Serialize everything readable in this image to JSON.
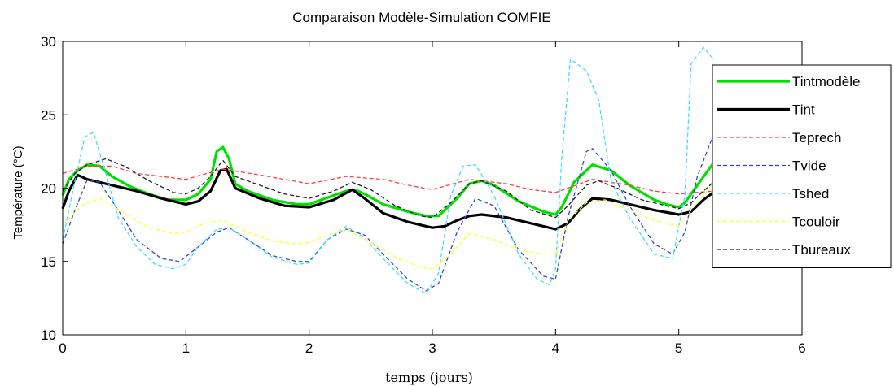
{
  "chart_data": {
    "type": "line",
    "title": "Comparaison Modèle-Simulation COMFIE",
    "xlabel": "temps (jours)",
    "ylabel": "Température (°C)",
    "xlim": [
      0,
      6
    ],
    "ylim": [
      10,
      30
    ],
    "xticks": [
      "0",
      "1",
      "2",
      "3",
      "4",
      "5",
      "6"
    ],
    "yticks": [
      "10",
      "15",
      "20",
      "25",
      "30"
    ],
    "grid": false,
    "legend_position": "top-right",
    "series": [
      {
        "name": "Tintmodèle",
        "color": "#00e000",
        "style": "solid",
        "width": 3.2,
        "x": [
          0,
          0.05,
          0.12,
          0.2,
          0.3,
          0.4,
          0.55,
          0.7,
          0.85,
          1.0,
          1.1,
          1.2,
          1.25,
          1.3,
          1.35,
          1.4,
          1.5,
          1.7,
          1.9,
          2.0,
          2.1,
          2.2,
          2.3,
          2.37,
          2.45,
          2.6,
          2.8,
          2.95,
          3.05,
          3.2,
          3.3,
          3.4,
          3.5,
          3.7,
          3.9,
          4.0,
          4.05,
          4.15,
          4.3,
          4.45,
          4.6,
          4.8,
          4.9,
          5.0,
          5.05,
          5.15,
          5.28
        ],
        "y": [
          19.5,
          20.6,
          21.2,
          21.6,
          21.5,
          20.8,
          20.1,
          19.6,
          19.2,
          19.2,
          19.6,
          20.6,
          22.5,
          22.8,
          22.0,
          20.3,
          19.8,
          19.2,
          18.9,
          18.9,
          19.2,
          19.5,
          19.8,
          19.9,
          19.6,
          18.9,
          18.4,
          18.1,
          18.1,
          19.3,
          20.3,
          20.5,
          20.2,
          19.1,
          18.4,
          18.2,
          18.7,
          20.4,
          21.6,
          21.2,
          20.2,
          19.2,
          18.9,
          18.7,
          19.0,
          20.2,
          21.7
        ]
      },
      {
        "name": "Tint",
        "color": "#000000",
        "style": "solid",
        "width": 3.2,
        "x": [
          0,
          0.05,
          0.12,
          0.2,
          0.4,
          0.6,
          0.8,
          1.0,
          1.1,
          1.2,
          1.28,
          1.33,
          1.4,
          1.6,
          1.8,
          2.0,
          2.2,
          2.35,
          2.45,
          2.6,
          2.8,
          3.0,
          3.1,
          3.2,
          3.3,
          3.4,
          3.6,
          3.8,
          4.0,
          4.1,
          4.2,
          4.3,
          4.45,
          4.6,
          4.8,
          5.0,
          5.1,
          5.2,
          5.28
        ],
        "y": [
          18.6,
          19.8,
          20.9,
          20.6,
          20.2,
          19.8,
          19.3,
          18.9,
          19.1,
          19.8,
          21.2,
          21.3,
          20.0,
          19.3,
          18.8,
          18.7,
          19.2,
          19.9,
          19.3,
          18.3,
          17.7,
          17.3,
          17.4,
          17.8,
          18.1,
          18.2,
          18.0,
          17.6,
          17.2,
          17.6,
          18.6,
          19.3,
          19.2,
          18.9,
          18.5,
          18.2,
          18.4,
          19.2,
          19.7
        ]
      },
      {
        "name": "Teprech",
        "color": "#ff4040",
        "style": "dash",
        "width": 1.3,
        "x": [
          0,
          0.2,
          0.4,
          0.6,
          0.8,
          1.0,
          1.3,
          1.6,
          1.8,
          2.0,
          2.3,
          2.6,
          2.8,
          3.0,
          3.3,
          3.6,
          3.8,
          4.0,
          4.3,
          4.6,
          4.8,
          5.0,
          5.28
        ],
        "y": [
          21.0,
          21.5,
          21.5,
          21.0,
          20.8,
          20.6,
          21.3,
          20.9,
          20.6,
          20.3,
          20.8,
          20.6,
          20.2,
          19.9,
          20.6,
          20.3,
          19.9,
          19.7,
          20.6,
          20.2,
          19.8,
          19.6,
          19.8
        ]
      },
      {
        "name": "Tvide",
        "color": "#3344dd",
        "style": "dash",
        "width": 1.3,
        "x": [
          0,
          0.1,
          0.2,
          0.3,
          0.45,
          0.6,
          0.8,
          0.95,
          1.1,
          1.25,
          1.35,
          1.5,
          1.7,
          1.9,
          2.0,
          2.15,
          2.3,
          2.45,
          2.6,
          2.8,
          2.95,
          3.05,
          3.2,
          3.35,
          3.5,
          3.7,
          3.9,
          4.0,
          4.1,
          4.25,
          4.3,
          4.45,
          4.6,
          4.8,
          4.95,
          5.05,
          5.15,
          5.28
        ],
        "y": [
          16.2,
          18.5,
          20.6,
          20.4,
          18.5,
          16.5,
          15.2,
          15.0,
          16.0,
          17.0,
          17.3,
          16.5,
          15.4,
          15.0,
          15.0,
          16.5,
          17.2,
          16.8,
          15.5,
          13.8,
          13.0,
          13.5,
          17.0,
          19.3,
          18.8,
          15.8,
          14.0,
          13.8,
          18.0,
          22.5,
          22.7,
          21.2,
          18.8,
          16.2,
          15.5,
          17.0,
          20.8,
          23.6
        ]
      },
      {
        "name": "Tshed",
        "color": "#44ddff",
        "style": "dash",
        "width": 1.3,
        "x": [
          0,
          0.1,
          0.18,
          0.25,
          0.35,
          0.45,
          0.6,
          0.75,
          0.9,
          1.0,
          1.1,
          1.25,
          1.35,
          1.5,
          1.7,
          1.9,
          2.0,
          2.15,
          2.3,
          2.45,
          2.6,
          2.8,
          2.95,
          3.05,
          3.15,
          3.25,
          3.35,
          3.5,
          3.7,
          3.85,
          3.95,
          4.0,
          4.05,
          4.12,
          4.25,
          4.35,
          4.45,
          4.6,
          4.8,
          4.95,
          5.05,
          5.1,
          5.2,
          5.28
        ],
        "y": [
          16.5,
          20.5,
          23.5,
          23.8,
          21.0,
          18.0,
          16.0,
          14.8,
          14.5,
          14.8,
          16.0,
          17.2,
          17.3,
          16.5,
          15.3,
          14.8,
          14.9,
          16.5,
          17.4,
          16.6,
          15.2,
          13.5,
          12.8,
          14.2,
          19.5,
          21.5,
          21.6,
          19.5,
          15.5,
          13.8,
          13.4,
          14.5,
          22.0,
          28.8,
          28.0,
          26.0,
          20.5,
          18.0,
          15.5,
          15.2,
          19.5,
          28.5,
          29.6,
          28.8
        ]
      },
      {
        "name": "Tcouloir",
        "color": "#ffff33",
        "style": "dash",
        "width": 1.3,
        "x": [
          0,
          0.15,
          0.3,
          0.5,
          0.7,
          0.9,
          1.0,
          1.15,
          1.3,
          1.5,
          1.7,
          1.9,
          2.0,
          2.15,
          2.3,
          2.5,
          2.7,
          2.9,
          3.0,
          3.15,
          3.3,
          3.5,
          3.7,
          3.9,
          4.0,
          4.1,
          4.25,
          4.4,
          4.6,
          4.8,
          5.0,
          5.1,
          5.28
        ],
        "y": [
          17.5,
          18.8,
          19.3,
          18.3,
          17.3,
          16.9,
          17.0,
          17.6,
          17.8,
          17.0,
          16.4,
          16.2,
          16.3,
          16.8,
          17.2,
          16.3,
          15.3,
          14.6,
          14.5,
          15.5,
          16.9,
          16.5,
          15.8,
          15.5,
          15.5,
          17.8,
          19.0,
          19.2,
          18.5,
          17.8,
          17.4,
          18.5,
          20.3
        ]
      },
      {
        "name": "Tbureaux",
        "color": "#222222",
        "style": "dash",
        "width": 1.3,
        "x": [
          0,
          0.1,
          0.2,
          0.35,
          0.5,
          0.7,
          0.9,
          1.0,
          1.1,
          1.2,
          1.3,
          1.4,
          1.6,
          1.8,
          2.0,
          2.2,
          2.35,
          2.5,
          2.7,
          2.9,
          3.0,
          3.15,
          3.3,
          3.4,
          3.6,
          3.8,
          4.0,
          4.1,
          4.25,
          4.35,
          4.5,
          4.7,
          4.9,
          5.0,
          5.1,
          5.2,
          5.28
        ],
        "y": [
          19.8,
          21.0,
          21.6,
          22.0,
          21.5,
          20.5,
          19.7,
          19.6,
          20.0,
          20.8,
          21.9,
          20.8,
          20.2,
          19.6,
          19.3,
          19.8,
          20.4,
          19.9,
          18.8,
          18.1,
          18.0,
          19.0,
          20.3,
          20.5,
          19.8,
          18.5,
          18.0,
          18.8,
          20.2,
          20.5,
          20.0,
          19.2,
          18.8,
          18.6,
          19.0,
          19.8,
          20.4
        ]
      }
    ]
  }
}
